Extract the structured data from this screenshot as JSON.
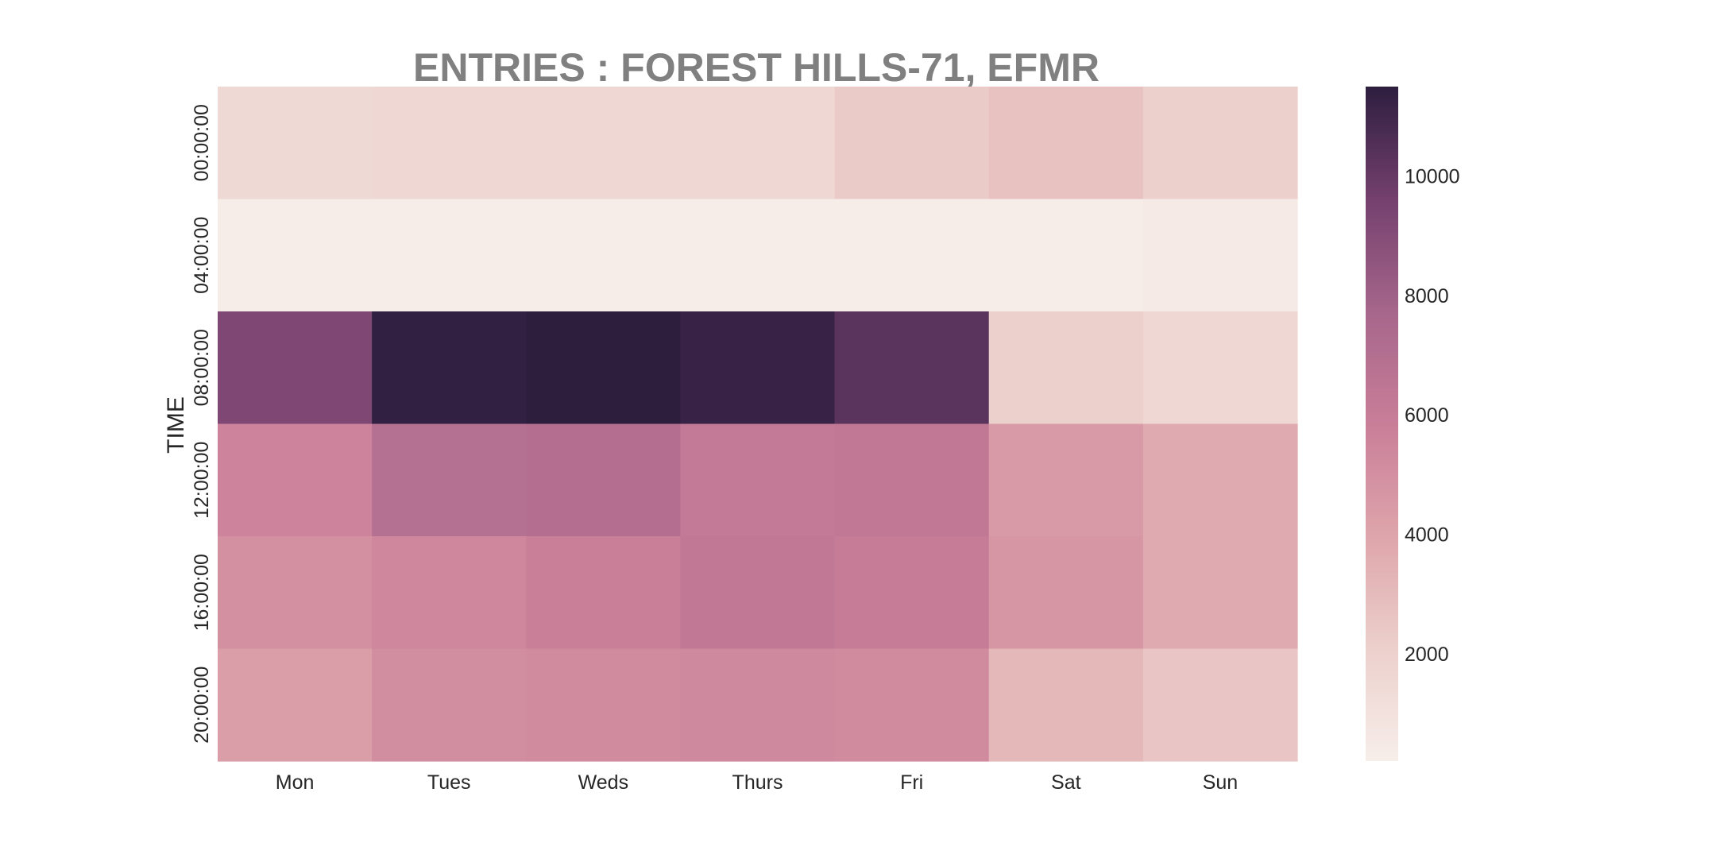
{
  "chart_data": {
    "type": "heatmap",
    "title": "ENTRIES : FOREST HILLS-71, EFMR",
    "xlabel": "",
    "ylabel": "TIME",
    "x_categories": [
      "Mon",
      "Tues",
      "Weds",
      "Thurs",
      "Fri",
      "Sat",
      "Sun"
    ],
    "y_categories": [
      "00:00:00",
      "04:00:00",
      "08:00:00",
      "12:00:00",
      "16:00:00",
      "20:00:00"
    ],
    "values": [
      [
        1500,
        1600,
        1650,
        1650,
        2300,
        2700,
        2100
      ],
      [
        300,
        300,
        300,
        300,
        300,
        350,
        450
      ],
      [
        9200,
        11400,
        11500,
        11200,
        10300,
        2100,
        1600
      ],
      [
        5600,
        6900,
        7000,
        6200,
        6300,
        4500,
        3700
      ],
      [
        5000,
        5400,
        5800,
        6300,
        6000,
        4700,
        3700
      ],
      [
        4300,
        5100,
        5200,
        5300,
        5200,
        3200,
        2500
      ]
    ],
    "colorbar": {
      "min": 200,
      "max": 11500,
      "ticks": [
        2000,
        4000,
        6000,
        8000,
        10000
      ],
      "tick_labels": [
        "2000",
        "4000",
        "6000",
        "8000",
        "10000"
      ]
    },
    "colormap": [
      "#f7eeea",
      "#ecd0cc",
      "#dea5ab",
      "#c97e98",
      "#a6668b",
      "#74406e",
      "#2d1e3e"
    ]
  }
}
